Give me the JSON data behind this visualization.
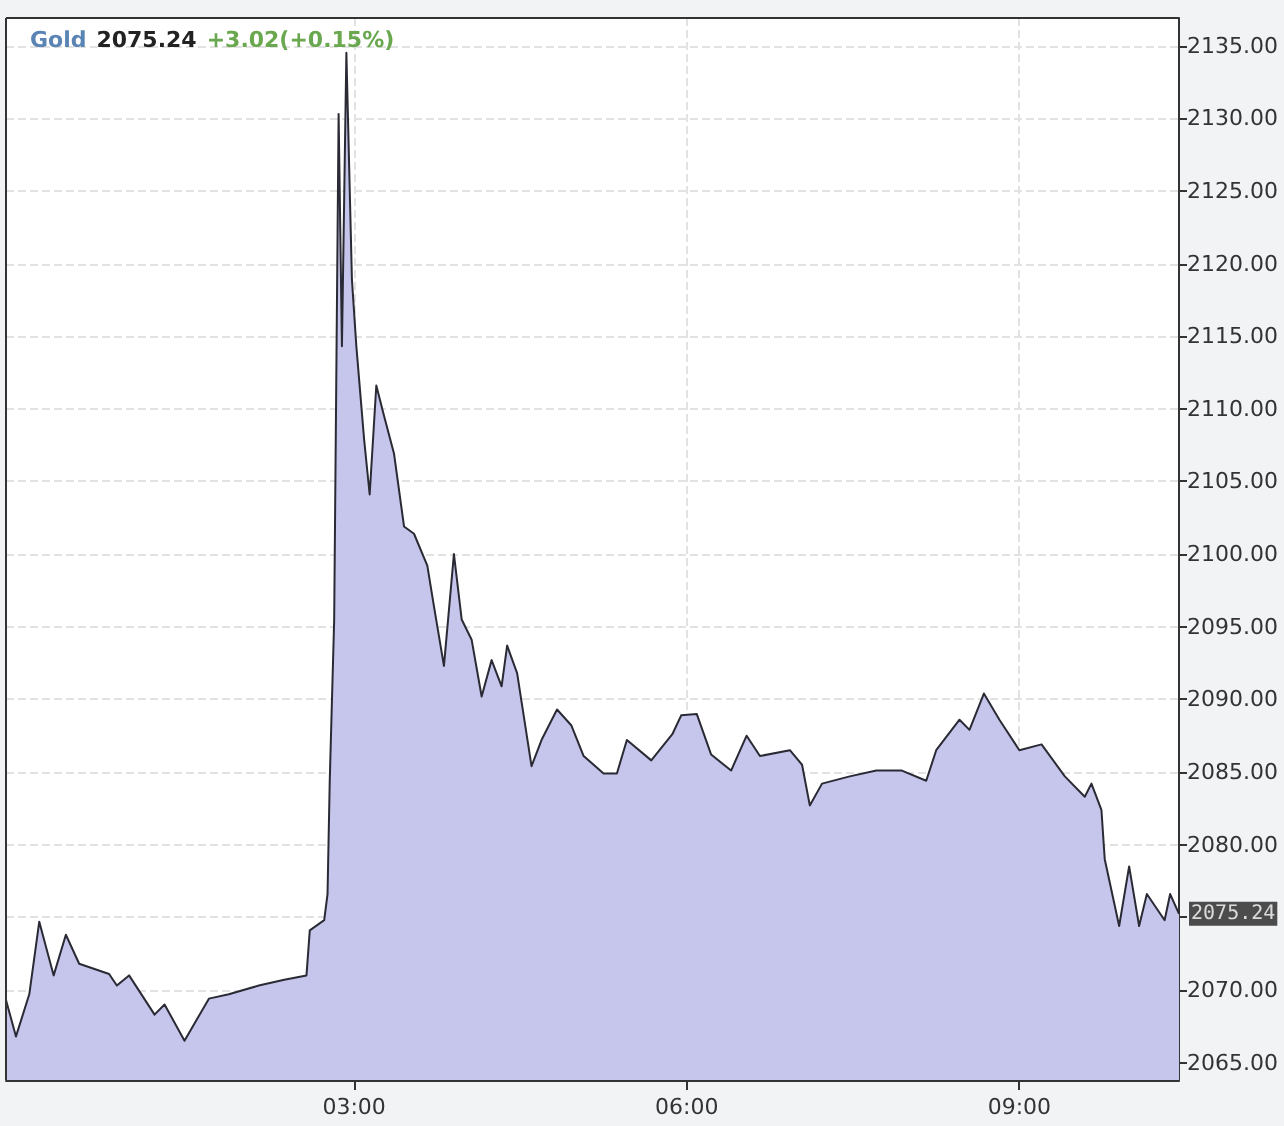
{
  "chart_data": {
    "type": "area",
    "title": "Gold 2075.24 +3.02(+0.15%)",
    "series": [
      {
        "color": "#c6c6ec",
        "x": [
          -0.14,
          -0.05,
          0.07,
          0.16,
          0.29,
          0.4,
          0.52,
          0.79,
          0.86,
          0.97,
          1.2,
          1.29,
          1.47,
          1.69,
          1.87,
          2.14,
          2.37,
          2.57,
          2.6,
          2.73,
          2.76,
          2.78,
          2.82,
          2.86,
          2.89,
          2.93,
          2.98,
          3.02,
          3.09,
          3.14,
          3.2,
          3.27,
          3.36,
          3.45,
          3.54,
          3.66,
          3.72,
          3.81,
          3.9,
          3.97,
          4.06,
          4.15,
          4.24,
          4.33,
          4.38,
          4.47,
          4.6,
          4.69,
          4.83,
          4.96,
          5.07,
          5.25,
          5.37,
          5.46,
          5.68,
          5.87,
          5.95,
          6.09,
          6.22,
          6.4,
          6.54,
          6.66,
          6.93,
          7.04,
          7.11,
          7.22,
          7.47,
          7.71,
          7.94,
          8.16,
          8.25,
          8.46,
          8.55,
          8.68,
          8.82,
          9.0,
          9.2,
          9.41,
          9.59,
          9.65,
          9.74,
          9.77,
          9.9,
          9.99,
          10.08,
          10.15,
          10.31,
          10.36,
          10.44
        ],
        "values": [
          2069.3,
          2066.8,
          2069.7,
          2074.7,
          2071.0,
          2073.8,
          2071.8,
          2071.1,
          2070.3,
          2071.0,
          2068.3,
          2069.0,
          2066.5,
          2069.4,
          2069.7,
          2070.3,
          2070.7,
          2071.0,
          2074.1,
          2074.8,
          2076.6,
          2084.4,
          2095.5,
          2130.3,
          2114.3,
          2134.5,
          2118.9,
          2114.3,
          2107.9,
          2104.1,
          2111.6,
          2109.5,
          2106.9,
          2101.9,
          2101.4,
          2099.2,
          2096.4,
          2092.3,
          2100.0,
          2095.5,
          2094.1,
          2090.2,
          2092.7,
          2090.9,
          2093.7,
          2091.8,
          2085.4,
          2087.2,
          2089.3,
          2088.2,
          2086.1,
          2084.9,
          2084.9,
          2087.2,
          2085.8,
          2087.6,
          2088.9,
          2089.0,
          2086.2,
          2085.1,
          2087.5,
          2086.1,
          2086.5,
          2085.5,
          2082.7,
          2084.2,
          2084.7,
          2085.1,
          2085.1,
          2084.4,
          2086.5,
          2088.6,
          2087.9,
          2090.4,
          2088.6,
          2086.5,
          2086.9,
          2084.7,
          2083.3,
          2084.2,
          2082.4,
          2079.0,
          2074.4,
          2078.5,
          2074.4,
          2076.6,
          2074.8,
          2076.6,
          2075.24
        ]
      }
    ],
    "xlim": [
      -0.14,
      10.44
    ],
    "xticks": [
      {
        "value": 3,
        "label": "03:00"
      },
      {
        "value": 6,
        "label": "06:00"
      },
      {
        "value": 9,
        "label": "09:00"
      }
    ],
    "ylim": [
      2063.8,
      2136.9
    ],
    "yticks": [
      {
        "value": 2065,
        "label": "2065.00"
      },
      {
        "value": 2070,
        "label": "2070.00"
      },
      {
        "value": 2075,
        "label": null
      },
      {
        "value": 2080,
        "label": "2080.00"
      },
      {
        "value": 2085,
        "label": "2085.00"
      },
      {
        "value": 2090,
        "label": "2090.00"
      },
      {
        "value": 2095,
        "label": "2095.00"
      },
      {
        "value": 2100,
        "label": "2100.00"
      },
      {
        "value": 2105,
        "label": "2105.00"
      },
      {
        "value": 2110,
        "label": "2110.00"
      },
      {
        "value": 2115,
        "label": "2115.00"
      },
      {
        "value": 2120,
        "label": "2120.00"
      },
      {
        "value": 2125,
        "label": "2125.00"
      },
      {
        "value": 2130,
        "label": "2130.00"
      },
      {
        "value": 2135,
        "label": "2135.00"
      }
    ],
    "annotations": [
      {
        "text": "2075.24",
        "x": 10.44,
        "y": 2075.24
      }
    ],
    "grid": true,
    "marker": "none",
    "line_style": "solid"
  }
}
